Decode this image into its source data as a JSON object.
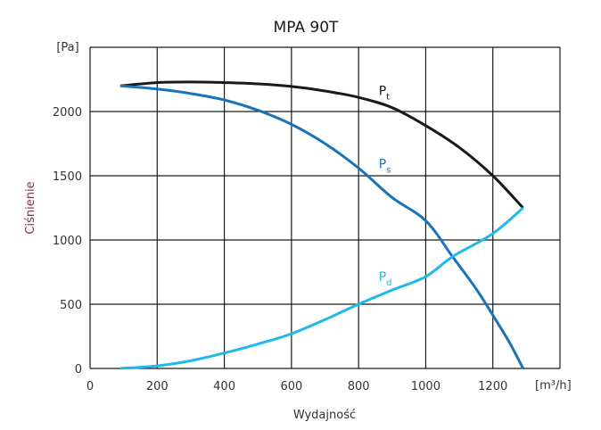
{
  "chart_data": {
    "type": "line",
    "title": "MPA 90T",
    "xlabel": "Wydajność",
    "ylabel": "Ciśnienie",
    "x_unit": "[m³/h]",
    "y_unit": "[Pa]",
    "xlim": [
      0,
      1400
    ],
    "ylim": [
      0,
      2500
    ],
    "grid": true,
    "x_ticks": [
      "0",
      "200",
      "400",
      "600",
      "800",
      "1000",
      "1200"
    ],
    "y_ticks": [
      "0",
      "500",
      "1000",
      "1500",
      "2000"
    ],
    "series": [
      {
        "name": "Pt",
        "sub": "t",
        "color": "#1a1a1a",
        "label_at": [
          860,
          2130
        ],
        "x": [
          90,
          200,
          300,
          400,
          500,
          600,
          700,
          800,
          900,
          1000,
          1100,
          1200,
          1290
        ],
        "y": [
          2200,
          2225,
          2230,
          2225,
          2215,
          2195,
          2160,
          2110,
          2030,
          1890,
          1720,
          1500,
          1250
        ]
      },
      {
        "name": "Ps",
        "sub": "s",
        "color": "#1a72b8",
        "label_at": [
          860,
          1560
        ],
        "x": [
          90,
          200,
          300,
          400,
          500,
          600,
          700,
          800,
          900,
          1000,
          1080,
          1150,
          1200,
          1250,
          1290
        ],
        "y": [
          2200,
          2175,
          2140,
          2090,
          2010,
          1900,
          1750,
          1560,
          1330,
          1150,
          870,
          620,
          415,
          200,
          0
        ]
      },
      {
        "name": "Pd",
        "sub": "d",
        "color": "#1fb8ea",
        "label_at": [
          860,
          680
        ],
        "x": [
          90,
          200,
          300,
          400,
          500,
          600,
          700,
          800,
          900,
          1000,
          1080,
          1200,
          1290
        ],
        "y": [
          0,
          20,
          60,
          120,
          190,
          270,
          380,
          500,
          610,
          715,
          870,
          1050,
          1250
        ]
      }
    ]
  }
}
